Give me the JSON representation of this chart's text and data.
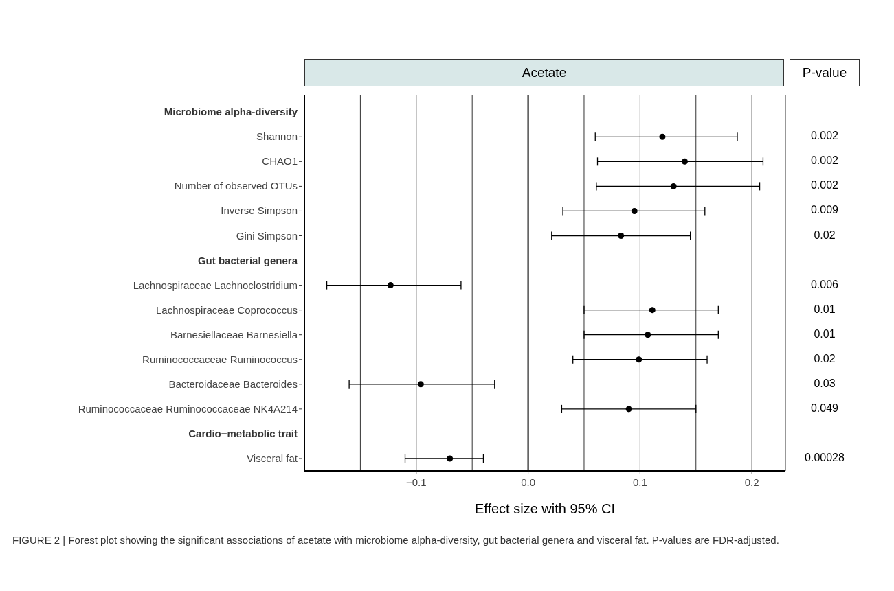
{
  "chart_data": {
    "type": "scatter",
    "orientation": "horizontal",
    "title": "Acetate",
    "xlabel": "Effect size with 95% CI",
    "categories": [
      "Microbiome alpha-diversity",
      "Shannon",
      "CHAO1",
      "Number of observed OTUs",
      "Inverse Simpson",
      "Gini Simpson",
      "Gut bacterial genera",
      "Lachnospiraceae Lachnoclostridium",
      "Lachnospiraceae Coprococcus",
      "Barnesiellaceae Barnesiella",
      "Ruminococcaceae Ruminococcus",
      "Bacteroidaceae Bacteroides",
      "Ruminococcaceae Ruminococcaceae NK4A214",
      "Cardio−metabolic trait",
      "Visceral fat"
    ],
    "values": [
      null,
      0.12,
      0.14,
      0.13,
      0.095,
      0.083,
      null,
      -0.123,
      0.111,
      0.107,
      0.099,
      -0.096,
      0.09,
      null,
      -0.07
    ],
    "errors": [
      null,
      [
        0.06,
        0.187
      ],
      [
        0.062,
        0.21
      ],
      [
        0.061,
        0.207
      ],
      [
        0.031,
        0.158
      ],
      [
        0.021,
        0.145
      ],
      null,
      [
        -0.18,
        -0.06
      ],
      [
        0.05,
        0.17
      ],
      [
        0.05,
        0.17
      ],
      [
        0.04,
        0.16
      ],
      [
        -0.16,
        -0.03
      ],
      [
        0.03,
        0.15
      ],
      null,
      [
        -0.11,
        -0.04
      ]
    ],
    "color": "#000000",
    "marker": "circle",
    "xlim": [
      -0.2,
      0.23
    ],
    "xticks": [
      {
        "value": -0.15,
        "label": null
      },
      {
        "value": -0.1,
        "label": "−0.1"
      },
      {
        "value": -0.05,
        "label": null
      },
      {
        "value": 0,
        "label": "0.0"
      },
      {
        "value": 0.05,
        "label": null
      },
      {
        "value": 0.1,
        "label": "0.1"
      },
      {
        "value": 0.15,
        "label": null
      },
      {
        "value": 0.2,
        "label": "0.2"
      }
    ],
    "grid": "x",
    "ref_lines": [
      {
        "axis": "x",
        "value": 0
      }
    ],
    "annotations": [
      "P-value",
      "0.002",
      "0.002",
      "0.002",
      "0.009",
      "0.02",
      "0.006",
      "0.01",
      "0.01",
      "0.02",
      "0.03",
      "0.049",
      "0.00028",
      "FIGURE 2 | Forest plot showing the significant associations of acetate with microbiome alpha-diversity, gut bacterial genera and visceral fat. P-values are FDR-adjusted."
    ]
  }
}
